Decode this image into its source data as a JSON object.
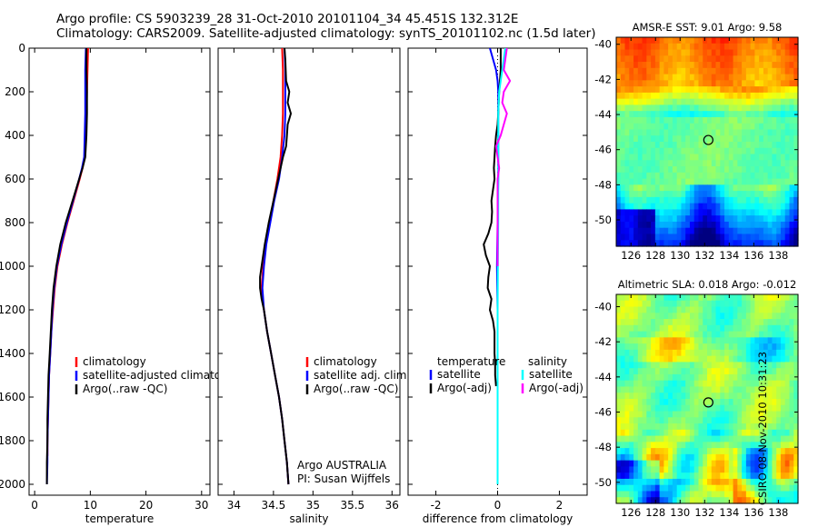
{
  "header": {
    "title_line1": "Argo profile: CS 5903239_28 31-Oct-2010 20101104_34 45.451S 132.312E",
    "title_line2": "Climatology: CARS2009. Satellite-adjusted climatology: synTS_20101102.nc (1.5d later)"
  },
  "stamp": "CSIRO 08-Nov-2010 10:31:23",
  "chart_data": [
    {
      "id": "temperature",
      "type": "line",
      "xlabel": "temperature",
      "xlim": [
        -1,
        31.5
      ],
      "ylim": [
        0,
        2050
      ],
      "yreversed": true,
      "xticks": [
        0,
        10,
        20,
        30
      ],
      "yticks": [
        0,
        200,
        400,
        600,
        800,
        1000,
        1200,
        1400,
        1600,
        1800,
        2000
      ],
      "legend": [
        "climatology",
        "satellite-adjusted climatology",
        "Argo(..raw -QC)"
      ],
      "series": [
        {
          "name": "climatology",
          "color": "#ff0000",
          "depth": [
            0,
            100,
            200,
            300,
            400,
            500,
            550,
            600,
            700,
            800,
            900,
            1000,
            1100,
            1200,
            1300,
            1400,
            1500,
            1600,
            1700,
            1800,
            1870
          ],
          "values": [
            9.6,
            9.5,
            9.4,
            9.3,
            9.2,
            9.0,
            8.6,
            8.1,
            7.0,
            5.9,
            4.9,
            4.1,
            3.6,
            3.3,
            3.0,
            2.8,
            2.6,
            2.5,
            2.4,
            2.3,
            2.3
          ]
        },
        {
          "name": "satellite-adjusted climatology",
          "color": "#0000ff",
          "depth": [
            0,
            100,
            200,
            300,
            400,
            500,
            550,
            600,
            700,
            800,
            900,
            1000,
            1100,
            1200,
            1300,
            1400,
            1500,
            1600,
            1700,
            1800,
            1900,
            2000
          ],
          "values": [
            9.2,
            9.1,
            9.1,
            9.1,
            9.0,
            8.9,
            8.5,
            8.0,
            6.9,
            5.8,
            4.8,
            4.0,
            3.5,
            3.2,
            3.0,
            2.8,
            2.6,
            2.5,
            2.4,
            2.3,
            2.3,
            2.2
          ]
        },
        {
          "name": "Argo(..raw -QC)",
          "color": "#000000",
          "depth": [
            0,
            100,
            200,
            300,
            400,
            500,
            550,
            600,
            700,
            800,
            900,
            1000,
            1100,
            1200,
            1300,
            1400,
            1500,
            1600,
            1700,
            1800,
            1900,
            2000
          ],
          "values": [
            9.3,
            9.3,
            9.4,
            9.4,
            9.3,
            9.1,
            8.6,
            8.0,
            6.8,
            5.6,
            4.6,
            3.9,
            3.4,
            3.1,
            2.9,
            2.7,
            2.5,
            2.4,
            2.3,
            2.3,
            2.2,
            2.2
          ]
        }
      ]
    },
    {
      "id": "salinity",
      "type": "line",
      "xlabel": "salinity",
      "xlim": [
        33.8,
        36.1
      ],
      "ylim": [
        0,
        2050
      ],
      "yreversed": true,
      "xticks": [
        34,
        34.5,
        35,
        35.5,
        36
      ],
      "legend": [
        "climatology",
        "satellite adj. clim.",
        "Argo(..raw -QC)"
      ],
      "annotations": [
        "Argo AUSTRALIA",
        "PI: Susan Wijffels"
      ],
      "series": [
        {
          "name": "climatology",
          "color": "#ff0000",
          "depth": [
            0,
            100,
            200,
            300,
            400,
            500,
            600,
            700,
            800,
            900,
            1000,
            1100,
            1200,
            1300,
            1400,
            1500,
            1600,
            1700,
            1800,
            1900,
            2000
          ],
          "values": [
            34.61,
            34.62,
            34.62,
            34.62,
            34.61,
            34.59,
            34.55,
            34.5,
            34.45,
            34.4,
            34.37,
            34.35,
            34.38,
            34.42,
            34.47,
            34.52,
            34.57,
            34.61,
            34.64,
            34.67,
            34.69
          ]
        },
        {
          "name": "satellite adj. clim.",
          "color": "#0000ff",
          "depth": [
            0,
            100,
            200,
            300,
            400,
            500,
            600,
            700,
            800,
            900,
            1000,
            1100,
            1200,
            1300,
            1400,
            1500,
            1600,
            1700,
            1800,
            1900,
            2000
          ],
          "values": [
            34.64,
            34.65,
            34.65,
            34.65,
            34.64,
            34.61,
            34.57,
            34.51,
            34.46,
            34.41,
            34.38,
            34.36,
            34.38,
            34.42,
            34.47,
            34.52,
            34.57,
            34.61,
            34.64,
            34.67,
            34.69
          ]
        },
        {
          "name": "Argo(..raw -QC)",
          "color": "#000000",
          "depth": [
            0,
            50,
            150,
            200,
            250,
            300,
            350,
            400,
            450,
            500,
            600,
            700,
            800,
            900,
            1000,
            1050,
            1100,
            1150,
            1200,
            1300,
            1400,
            1500,
            1600,
            1700,
            1800,
            1900,
            2000
          ],
          "values": [
            34.64,
            34.65,
            34.66,
            34.7,
            34.68,
            34.72,
            34.68,
            34.67,
            34.66,
            34.62,
            34.56,
            34.5,
            34.44,
            34.39,
            34.35,
            34.33,
            34.33,
            34.35,
            34.38,
            34.42,
            34.47,
            34.52,
            34.57,
            34.61,
            34.64,
            34.67,
            34.69
          ]
        }
      ]
    },
    {
      "id": "difference",
      "type": "line",
      "xlabel": "difference from climatology",
      "xlim": [
        -2.9,
        2.9
      ],
      "ylim": [
        0,
        2050
      ],
      "yreversed": true,
      "xticks": [
        -2,
        0,
        2
      ],
      "legend_title_left": "temperature",
      "legend_title_right": "salinity",
      "legend": [
        "satellite",
        "Argo(-adj)",
        "satellite",
        "Argo(-adj)"
      ],
      "series": [
        {
          "name": "temperature satellite",
          "color": "#0000ff",
          "depth": [
            0,
            50,
            100,
            150,
            200,
            300,
            400,
            500,
            600,
            800,
            1000,
            1200,
            1400,
            1600,
            1800,
            2000
          ],
          "values": [
            -0.25,
            -0.15,
            -0.05,
            0.0,
            0.02,
            0.02,
            0.02,
            0.02,
            0.02,
            0.0,
            -0.02,
            0.0,
            0.0,
            0.0,
            0.0,
            0.0
          ]
        },
        {
          "name": "temperature Argo(-adj)",
          "color": "#000000",
          "depth": [
            0,
            100,
            200,
            300,
            350,
            400,
            450,
            500,
            550,
            600,
            650,
            700,
            750,
            800,
            850,
            900,
            950,
            1000,
            1050,
            1100,
            1150,
            1200,
            1250,
            1300,
            1350,
            1400,
            1450,
            1500,
            1550
          ],
          "values": [
            0.1,
            0.1,
            0.05,
            0.02,
            0.0,
            -0.05,
            -0.08,
            -0.1,
            -0.12,
            -0.1,
            -0.15,
            -0.2,
            -0.18,
            -0.2,
            -0.3,
            -0.45,
            -0.38,
            -0.25,
            -0.3,
            -0.32,
            -0.2,
            -0.25,
            -0.15,
            -0.1,
            -0.1,
            -0.1,
            -0.08,
            -0.08,
            -0.05
          ]
        },
        {
          "name": "salinity satellite",
          "color": "#00ffff",
          "depth": [
            0,
            100,
            200,
            300,
            400,
            500,
            600,
            800,
            1000,
            1200,
            1400,
            1600,
            1800,
            2000
          ],
          "values": [
            0.25,
            0.15,
            0.05,
            0.02,
            0.02,
            0.02,
            0.02,
            0.02,
            0.01,
            0.0,
            0.0,
            0.0,
            0.0,
            0.0
          ]
        },
        {
          "name": "salinity Argo(-adj)",
          "color": "#ff00ff",
          "depth": [
            0,
            100,
            150,
            200,
            250,
            300,
            350,
            400,
            450,
            500,
            550,
            600,
            700,
            800,
            900,
            1000
          ],
          "values": [
            0.3,
            0.2,
            0.4,
            0.2,
            0.15,
            0.3,
            0.2,
            0.1,
            -0.05,
            0.0,
            0.05,
            0.0,
            0.0,
            0.0,
            0.0,
            0.0
          ]
        }
      ]
    },
    {
      "id": "sst-map",
      "type": "heatmap",
      "title": "AMSR-E SST: 9.01  Argo: 9.58",
      "xticks": [
        126,
        128,
        130,
        132,
        134,
        136,
        138
      ],
      "yticks": [
        -40,
        -42,
        -44,
        -46,
        -48,
        -50
      ],
      "xlim": [
        124.8,
        139.6
      ],
      "ylim": [
        -51.5,
        -39.6
      ],
      "marker": {
        "lon": 132.3,
        "lat": -45.45
      }
    },
    {
      "id": "sla-map",
      "type": "heatmap",
      "title": "Altimetric SLA: 0.018  Argo: -0.012",
      "xticks": [
        126,
        128,
        130,
        132,
        134,
        136,
        138
      ],
      "yticks": [
        -40,
        -42,
        -44,
        -46,
        -48,
        -50
      ],
      "xlim": [
        124.8,
        139.6
      ],
      "ylim": [
        -51.2,
        -39.3
      ],
      "marker": {
        "lon": 132.3,
        "lat": -45.45
      }
    }
  ]
}
